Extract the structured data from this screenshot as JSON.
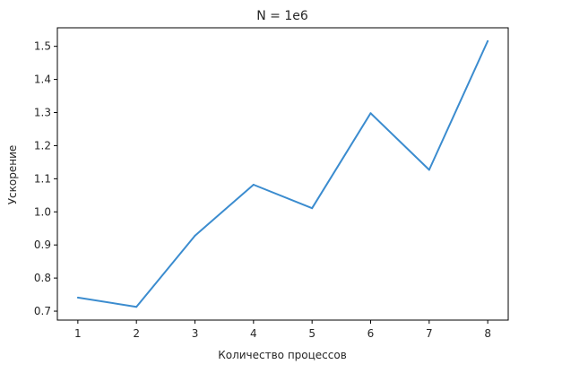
{
  "chart_data": {
    "type": "line",
    "title": "N = 1e6",
    "xlabel": "Количество процессов",
    "ylabel": "Ускорение",
    "x": [
      1,
      2,
      3,
      4,
      5,
      6,
      7,
      8
    ],
    "series": [
      {
        "values": [
          0.741,
          0.713,
          0.928,
          1.082,
          1.011,
          1.298,
          1.127,
          1.516
        ],
        "color": "#3b8ccf"
      }
    ],
    "xticks": [
      "1",
      "2",
      "3",
      "4",
      "5",
      "6",
      "7",
      "8"
    ],
    "yticks": [
      "0.7",
      "0.8",
      "0.9",
      "1.0",
      "1.1",
      "1.2",
      "1.3",
      "1.4",
      "1.5"
    ],
    "xlim": [
      0.65,
      8.35
    ],
    "ylim": [
      0.673,
      1.556
    ],
    "grid": false,
    "legend": "none"
  }
}
